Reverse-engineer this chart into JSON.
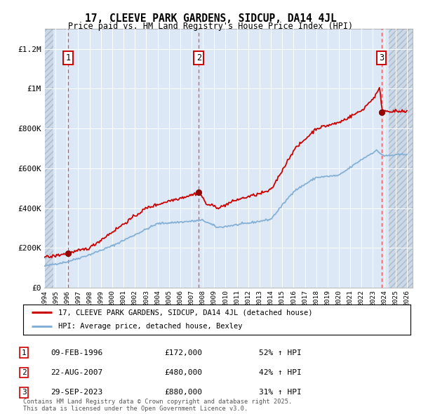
{
  "title": "17, CLEEVE PARK GARDENS, SIDCUP, DA14 4JL",
  "subtitle": "Price paid vs. HM Land Registry's House Price Index (HPI)",
  "ylim": [
    0,
    1300000
  ],
  "xlim_start": 1994.0,
  "xlim_end": 2026.5,
  "yticks": [
    0,
    200000,
    400000,
    600000,
    800000,
    1000000,
    1200000
  ],
  "ytick_labels": [
    "£0",
    "£200K",
    "£400K",
    "£600K",
    "£800K",
    "£1M",
    "£1.2M"
  ],
  "plot_bg_color": "#dce8f5",
  "hatch_bg_color": "#ccd8e8",
  "grid_color": "#ffffff",
  "red_line_color": "#cc0000",
  "blue_line_color": "#85b0d5",
  "vline_color": "#ee3333",
  "sale_points": [
    {
      "date": 1996.12,
      "price": 172000,
      "label": "1"
    },
    {
      "date": 2007.64,
      "price": 480000,
      "label": "2"
    },
    {
      "date": 2023.75,
      "price": 880000,
      "label": "3"
    }
  ],
  "hatch_left_end": 1994.83,
  "hatch_right_start": 2024.42,
  "legend_entries": [
    {
      "color": "#cc0000",
      "label": "17, CLEEVE PARK GARDENS, SIDCUP, DA14 4JL (detached house)"
    },
    {
      "color": "#85b0d5",
      "label": "HPI: Average price, detached house, Bexley"
    }
  ],
  "table_rows": [
    {
      "num": "1",
      "date": "09-FEB-1996",
      "price": "£172,000",
      "change": "52% ↑ HPI"
    },
    {
      "num": "2",
      "date": "22-AUG-2007",
      "price": "£480,000",
      "change": "42% ↑ HPI"
    },
    {
      "num": "3",
      "date": "29-SEP-2023",
      "price": "£880,000",
      "change": "31% ↑ HPI"
    }
  ],
  "footnote": "Contains HM Land Registry data © Crown copyright and database right 2025.\nThis data is licensed under the Open Government Licence v3.0."
}
